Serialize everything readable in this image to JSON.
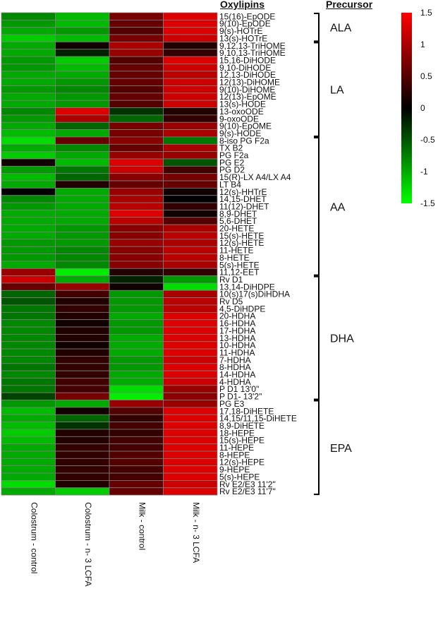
{
  "chart_data": {
    "type": "heatmap",
    "title": "",
    "row_header": "Oxylipins",
    "group_header": "Precursor",
    "columns": [
      "Colostrum - control",
      "Colostrum - n- 3 LCFA",
      "Milk - control",
      "Milk - n- 3 LCFA"
    ],
    "rows": [
      "15(16)-EpODE",
      "9(10)-EpODE",
      "9(s)-HOTrE",
      "13(s)-HOTrE",
      "9,12,13-TriHOME",
      "9,10,13-TriHOME",
      "15,16-DiHODE",
      "9,10-DiHODE",
      "12,13-DiHODE",
      "12(13)-DiHOME",
      "9(10)-DiHOME",
      "12(13)-EpOME",
      "13(s)-HODE",
      "13-oxoODE",
      "9-oxoODE",
      "9(10)-EpOME",
      "9(s)-HODE",
      "8-iso PG F2a",
      "TX B2",
      "PG F2a",
      "PG E2",
      "PG D2",
      "15(R)-LX A4/LX A4",
      "LT B4",
      "12(s)-HHTrE",
      "14,15-DHET",
      "11(12)-DHET",
      "8,9-DHET",
      "5,6-DHET",
      "20-HETE",
      "15(s)-HETE",
      "12(s)-HETE",
      "11-HETE",
      "8-HETE",
      "5(s)-HETE",
      "11,12-EET",
      "Rv D1",
      "13,14-DiHDPE",
      "10(s)17(s)DiHDHA",
      "Rv D5",
      "4,5-DiHDPE",
      "20-HDHA",
      "16-HDHA",
      "17-HDHA",
      "13-HDHA",
      "10-HDHA",
      "11-HDHA",
      "7-HDHA",
      "8-HDHA",
      "14-HDHA",
      "4-HDHA",
      "P D1 13'0\"",
      "P D1- 13'2\"",
      "PG E3",
      "17,18-DiHETE",
      "14,15/11,15-DiHETE",
      "8,9-DiHETE",
      "18-HEPE",
      "15(s)-HEPE",
      "11-HEPE",
      "8-HEPE",
      "12(s)-HEPE",
      "9-HEPE",
      "5(s)-HEPE",
      "Rv E2/E3 11'2\"",
      "Rv E2/E3 11'7\""
    ],
    "values": [
      [
        -0.8,
        -1.1,
        0.7,
        1.3
      ],
      [
        -0.9,
        -1.1,
        0.6,
        1.3
      ],
      [
        -1.0,
        -0.9,
        0.5,
        1.3
      ],
      [
        -1.2,
        -1.1,
        0.7,
        1.2
      ],
      [
        -1.0,
        0.1,
        1.0,
        0.2
      ],
      [
        -1.0,
        -0.2,
        0.9,
        0.3
      ],
      [
        -0.9,
        -1.2,
        0.5,
        1.3
      ],
      [
        -0.9,
        -1.1,
        0.6,
        1.2
      ],
      [
        -1.0,
        -1.0,
        0.6,
        1.1
      ],
      [
        -1.0,
        -0.9,
        0.6,
        1.2
      ],
      [
        -0.9,
        -0.8,
        0.5,
        1.2
      ],
      [
        -1.0,
        -0.9,
        0.6,
        1.2
      ],
      [
        -1.0,
        -0.9,
        0.5,
        1.2
      ],
      [
        -0.8,
        1.3,
        -0.3,
        0.2
      ],
      [
        -0.9,
        1.0,
        -0.6,
        0.3
      ],
      [
        -1.0,
        -0.6,
        0.7,
        0.9
      ],
      [
        -1.1,
        -1.0,
        0.7,
        1.0
      ],
      [
        -1.3,
        0.6,
        0.8,
        -0.7
      ],
      [
        -1.0,
        -0.8,
        0.6,
        1.0
      ],
      [
        -1.2,
        -1.0,
        0.9,
        0.9
      ],
      [
        0.1,
        -1.1,
        1.3,
        -0.5
      ],
      [
        -0.9,
        -0.7,
        1.2,
        0.4
      ],
      [
        -1.1,
        -0.6,
        0.8,
        0.7
      ],
      [
        -1.0,
        0.2,
        0.6,
        0.6
      ],
      [
        0.0,
        -1.0,
        0.9,
        0.1
      ],
      [
        -0.8,
        -1.0,
        1.0,
        0.0
      ],
      [
        -0.9,
        -1.0,
        1.1,
        0.3
      ],
      [
        -1.0,
        -1.0,
        1.3,
        0.1
      ],
      [
        -1.0,
        -1.0,
        1.1,
        0.5
      ],
      [
        -1.0,
        -0.9,
        0.8,
        1.0
      ],
      [
        -1.0,
        -0.9,
        0.8,
        1.1
      ],
      [
        -0.9,
        -0.9,
        0.9,
        1.0
      ],
      [
        -0.9,
        -0.8,
        0.8,
        1.1
      ],
      [
        -0.9,
        -0.8,
        0.8,
        1.1
      ],
      [
        -1.0,
        -0.8,
        0.8,
        1.0
      ],
      [
        0.9,
        -1.4,
        0.2,
        0.3
      ],
      [
        1.2,
        -1.0,
        -0.2,
        -0.9
      ],
      [
        0.6,
        0.9,
        0.1,
        -1.3
      ],
      [
        -0.6,
        0.4,
        -0.9,
        1.0
      ],
      [
        -0.5,
        0.2,
        -0.9,
        1.1
      ],
      [
        -0.7,
        0.3,
        -0.9,
        1.1
      ],
      [
        -0.7,
        0.2,
        -1.0,
        1.3
      ],
      [
        -0.8,
        0.1,
        -0.9,
        1.3
      ],
      [
        -0.8,
        0.2,
        -0.9,
        1.3
      ],
      [
        -0.8,
        0.2,
        -1.0,
        1.3
      ],
      [
        -0.8,
        0.1,
        -1.0,
        1.3
      ],
      [
        -0.8,
        0.2,
        -1.0,
        1.3
      ],
      [
        -0.8,
        0.3,
        -0.9,
        1.2
      ],
      [
        -0.7,
        0.3,
        -0.9,
        1.3
      ],
      [
        -0.8,
        0.3,
        -1.0,
        1.3
      ],
      [
        -0.7,
        0.4,
        -1.0,
        1.2
      ],
      [
        -0.7,
        0.4,
        -1.3,
        0.9
      ],
      [
        -0.4,
        0.7,
        -1.4,
        0.8
      ],
      [
        -0.9,
        -1.0,
        0.9,
        0.9
      ],
      [
        -1.1,
        0.1,
        0.5,
        1.3
      ],
      [
        -1.0,
        -0.6,
        0.3,
        1.3
      ],
      [
        -1.1,
        -0.3,
        0.4,
        1.3
      ],
      [
        -1.2,
        0.2,
        0.3,
        1.3
      ],
      [
        -1.1,
        0.2,
        0.4,
        1.3
      ],
      [
        -1.0,
        0.3,
        0.4,
        1.3
      ],
      [
        -1.0,
        0.3,
        0.5,
        1.3
      ],
      [
        -1.0,
        0.3,
        0.5,
        1.3
      ],
      [
        -1.0,
        0.3,
        0.4,
        1.3
      ],
      [
        -1.0,
        0.3,
        0.4,
        1.3
      ],
      [
        -1.3,
        0.2,
        0.6,
        1.2
      ],
      [
        -1.0,
        -1.2,
        0.6,
        1.3
      ]
    ],
    "groups": [
      {
        "label": "ALA",
        "start": 0,
        "end": 3
      },
      {
        "label": "LA",
        "start": 4,
        "end": 16
      },
      {
        "label": "AA",
        "start": 17,
        "end": 35
      },
      {
        "label": "DHA",
        "start": 36,
        "end": 52
      },
      {
        "label": "EPA",
        "start": 53,
        "end": 65
      }
    ],
    "colorscale": {
      "min": -1.5,
      "max": 1.5,
      "low_color": "#00ff00",
      "mid_color": "#000000",
      "high_color": "#ff0000",
      "ticks": [
        1.5,
        1,
        0.5,
        0,
        -0.5,
        -1,
        -1.5
      ],
      "tick_labels": [
        "1.5",
        "1",
        "0.5",
        "0",
        "-0.5",
        "-1",
        "-1.5"
      ]
    }
  }
}
